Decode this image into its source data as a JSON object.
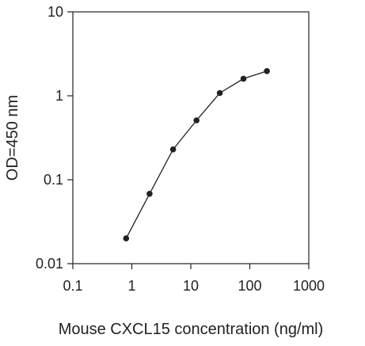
{
  "chart_data": {
    "type": "line",
    "title": "",
    "xlabel": "Mouse CXCL15 concentration (ng/ml)",
    "ylabel": "OD=450 nm",
    "xscale": "log",
    "yscale": "log",
    "xlim": [
      0.1,
      1000
    ],
    "ylim": [
      0.01,
      10
    ],
    "x_ticks": [
      0.1,
      1,
      10,
      100,
      1000
    ],
    "x_tick_labels": [
      "0.1",
      "1",
      "10",
      "100",
      "1000"
    ],
    "y_ticks": [
      0.01,
      0.1,
      1,
      10
    ],
    "y_tick_labels": [
      "0.01",
      "0.1",
      "1",
      "10"
    ],
    "grid": false,
    "legend": "none",
    "series": [
      {
        "x": [
          0.8,
          2,
          5,
          12.5,
          31,
          78,
          195
        ],
        "y": [
          0.02,
          0.068,
          0.23,
          0.51,
          1.08,
          1.6,
          1.97
        ],
        "marker": "circle",
        "color": "#222222"
      }
    ]
  }
}
